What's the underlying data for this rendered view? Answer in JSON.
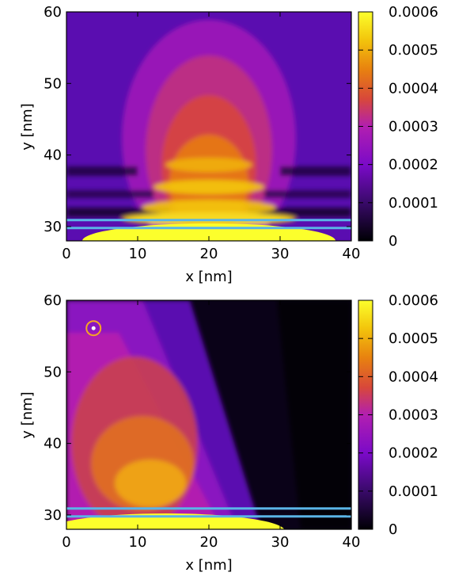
{
  "chart_data": [
    {
      "type": "heatmap",
      "xlabel": "x [nm]",
      "ylabel": "y [nm]",
      "xlim": [
        0,
        40
      ],
      "ylim": [
        28,
        60
      ],
      "x_ticks": [
        "0",
        "10",
        "20",
        "30",
        "40"
      ],
      "y_ticks": [
        "30",
        "40",
        "50",
        "60"
      ],
      "colorbar": {
        "range": [
          0,
          0.0006
        ],
        "ticks": [
          "0",
          "0.0001",
          "0.0002",
          "0.0003",
          "0.0004",
          "0.0005",
          "0.0006"
        ],
        "colormap": [
          "#000004",
          "#3a0a6b",
          "#7a0ac8",
          "#b21fb0",
          "#d8483a",
          "#e8820f",
          "#f3c60c",
          "#fcff2c"
        ]
      },
      "pattern": "centered vertical plume with horizontal banding, peak near x=20",
      "plume_center_x": 20,
      "lines": [
        {
          "y": 29.8,
          "color": "#5ab4e6"
        },
        {
          "y": 30.9,
          "color": "#5ab4e6"
        }
      ]
    },
    {
      "type": "heatmap",
      "xlabel": "x [nm]",
      "ylabel": "y [nm]",
      "xlim": [
        0,
        40
      ],
      "ylim": [
        28,
        60
      ],
      "x_ticks": [
        "0",
        "10",
        "20",
        "30",
        "40"
      ],
      "y_ticks": [
        "30",
        "40",
        "50",
        "60"
      ],
      "colorbar": {
        "range": [
          0,
          0.0006
        ],
        "ticks": [
          "0",
          "0.0001",
          "0.0002",
          "0.0003",
          "0.0004",
          "0.0005",
          "0.0006"
        ],
        "colormap": [
          "#000004",
          "#3a0a6b",
          "#7a0ac8",
          "#b21fb0",
          "#d8483a",
          "#e8820f",
          "#f3c60c",
          "#fcff2c"
        ]
      },
      "pattern": "plume tilted toward the source, peak near x=12 y=34",
      "plume_center_x": 12,
      "source_marker": {
        "x": 3.8,
        "y": 56.1,
        "color": "#f5a623"
      },
      "lines": [
        {
          "y": 29.8,
          "color": "#5ab4e6"
        },
        {
          "y": 30.9,
          "color": "#5ab4e6"
        }
      ]
    }
  ]
}
